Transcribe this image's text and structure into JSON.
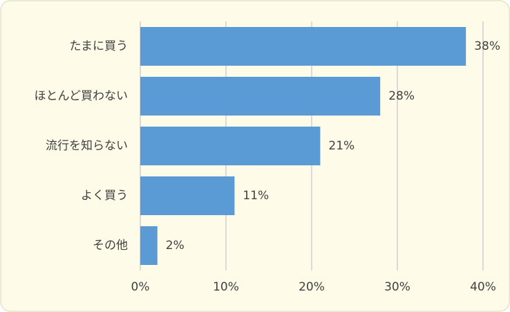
{
  "chart_data": {
    "type": "hbar",
    "categories": [
      "たまに買う",
      "ほとんど買わない",
      "流行を知らない",
      "よく買う",
      "その他"
    ],
    "values": [
      38,
      28,
      21,
      11,
      2
    ],
    "value_labels": [
      "38%",
      "28%",
      "21%",
      "11%",
      "2%"
    ],
    "color": "#5b9bd5",
    "xlim": [
      0,
      40
    ],
    "xticks": [
      {
        "value": 0,
        "label": "0%"
      },
      {
        "value": 10,
        "label": "10%"
      },
      {
        "value": 20,
        "label": "20%"
      },
      {
        "value": 30,
        "label": "30%"
      },
      {
        "value": 40,
        "label": "40%"
      }
    ],
    "grid": true
  }
}
